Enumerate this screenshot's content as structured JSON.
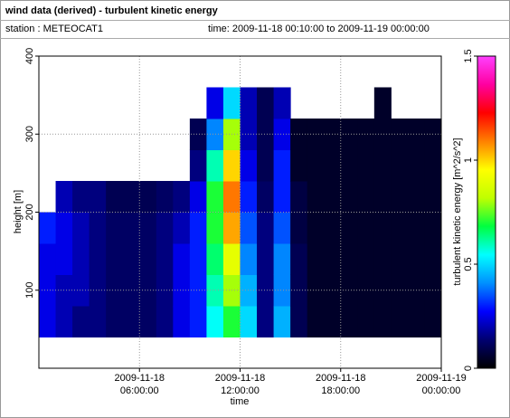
{
  "header": {
    "title": "wind data (derived) - turbulent kinetic energy",
    "station": "station : METEOCAT1",
    "time": "time: 2009-11-18 00:10:00 to 2009-11-19 00:00:00"
  },
  "chart_data": {
    "type": "heatmap",
    "xlabel": "time",
    "ylabel": "height [m]",
    "colorbar_label": "turbulent kinetic energy [m^2/s^2]",
    "xlim": [
      0,
      24
    ],
    "xticks": [
      {
        "value": 6,
        "label": "2009-11-18 06:00:00"
      },
      {
        "value": 12,
        "label": "2009-11-18 12:00:00"
      },
      {
        "value": 18,
        "label": "2009-11-18 18:00:00"
      },
      {
        "value": 24,
        "label": "2009-11-19 00:00:00"
      }
    ],
    "ylim": [
      0,
      400
    ],
    "yticks": [
      100,
      200,
      300,
      400
    ],
    "clim": [
      0,
      1.5
    ],
    "cticks": [
      0,
      0.5,
      1,
      1.5
    ],
    "colormap": [
      "#000000",
      "#000070",
      "#0000ff",
      "#0090ff",
      "#00ffff",
      "#00ff40",
      "#c0ff00",
      "#ffff00",
      "#ff8000",
      "#ff0000",
      "#ff00a0",
      "#ff40ff"
    ],
    "grid": true,
    "x_edges": [
      0,
      1,
      2,
      3,
      4,
      5,
      6,
      7,
      8,
      9,
      10,
      11,
      12,
      13,
      14,
      15,
      16,
      17,
      18,
      19,
      20,
      21,
      22,
      23,
      24
    ],
    "y_edges": [
      40,
      80,
      120,
      160,
      200,
      240,
      280,
      320,
      360
    ],
    "z": [
      [
        0.25,
        0.25,
        0.25,
        0.3,
        null,
        null,
        null,
        null
      ],
      [
        0.2,
        0.2,
        0.25,
        0.25,
        0.2,
        null,
        null,
        null
      ],
      [
        0.15,
        0.2,
        0.2,
        0.2,
        0.15,
        null,
        null,
        null
      ],
      [
        0.15,
        0.15,
        0.15,
        0.15,
        0.15,
        null,
        null,
        null
      ],
      [
        0.12,
        0.12,
        0.12,
        0.12,
        0.1,
        null,
        null,
        null
      ],
      [
        0.12,
        0.12,
        0.12,
        0.12,
        0.1,
        null,
        null,
        null
      ],
      [
        0.12,
        0.12,
        0.12,
        0.12,
        0.1,
        null,
        null,
        null
      ],
      [
        0.15,
        0.15,
        0.15,
        0.15,
        0.12,
        null,
        null,
        null
      ],
      [
        0.25,
        0.25,
        0.25,
        0.2,
        0.15,
        null,
        null,
        null
      ],
      [
        0.3,
        0.3,
        0.3,
        0.3,
        0.25,
        0.15,
        0.1,
        null
      ],
      [
        0.55,
        0.6,
        0.65,
        0.7,
        0.7,
        0.6,
        0.4,
        0.25
      ],
      [
        0.7,
        0.8,
        0.9,
        1.05,
        1.1,
        1.0,
        0.8,
        0.5
      ],
      [
        0.5,
        0.45,
        0.4,
        0.35,
        0.3,
        0.25,
        0.2,
        0.2
      ],
      [
        0.15,
        0.15,
        0.15,
        0.15,
        0.12,
        0.1,
        0.1,
        0.1
      ],
      [
        0.45,
        0.4,
        0.4,
        0.35,
        0.3,
        0.3,
        0.25,
        0.2
      ],
      [
        0.1,
        0.1,
        0.1,
        0.08,
        0.08,
        0.05,
        0.05,
        null
      ],
      [
        0.05,
        0.05,
        0.05,
        0.05,
        0.05,
        0.05,
        0.05,
        null
      ],
      [
        0.05,
        0.05,
        0.05,
        0.05,
        0.05,
        0.05,
        0.05,
        null
      ],
      [
        0.05,
        0.05,
        0.05,
        0.05,
        0.05,
        0.05,
        0.05,
        null
      ],
      [
        0.05,
        0.05,
        0.05,
        0.05,
        0.05,
        0.05,
        0.05,
        null
      ],
      [
        0.05,
        0.05,
        0.05,
        0.05,
        0.05,
        0.05,
        0.05,
        0.05
      ],
      [
        0.05,
        0.05,
        0.05,
        0.05,
        0.05,
        0.05,
        0.05,
        null
      ],
      [
        0.05,
        0.05,
        0.05,
        0.05,
        0.05,
        0.05,
        0.05,
        null
      ],
      [
        0.05,
        0.05,
        0.05,
        0.05,
        0.05,
        0.05,
        0.05,
        null
      ]
    ]
  }
}
